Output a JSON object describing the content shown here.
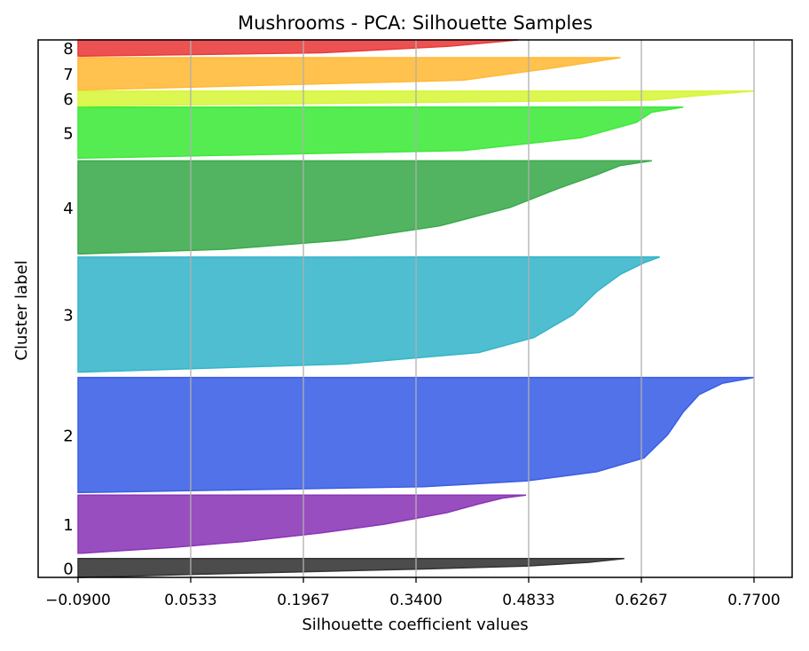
{
  "chart_data": {
    "type": "area",
    "title": "Mushrooms - PCA: Silhouette Samples",
    "xlabel": "Silhouette coefficient values",
    "ylabel": "Cluster label",
    "xlim": [
      -0.09,
      0.77
    ],
    "ylim": [
      0,
      1
    ],
    "x_ticks": [
      "−0.0900",
      "0.0533",
      "0.1967",
      "0.3400",
      "0.4833",
      "0.6267",
      "0.7700"
    ],
    "x_tick_values": [
      -0.09,
      0.0533,
      0.1967,
      0.34,
      0.4833,
      0.6267,
      0.77
    ],
    "grid": "vertical",
    "series": [
      {
        "label": "0",
        "color": "#333333",
        "band": [
          0.0,
          0.035
        ],
        "profile": [
          [
            0.0,
            0.605
          ],
          [
            0.2,
            0.56
          ],
          [
            0.4,
            0.48
          ],
          [
            0.55,
            0.35
          ],
          [
            0.7,
            0.2
          ],
          [
            0.85,
            0.05
          ],
          [
            1.0,
            -0.085
          ]
        ]
      },
      {
        "label": "1",
        "color": "#8b35b6",
        "band": [
          0.045,
          0.153
        ],
        "profile": [
          [
            0.0,
            0.48
          ],
          [
            0.05,
            0.45
          ],
          [
            0.15,
            0.42
          ],
          [
            0.3,
            0.38
          ],
          [
            0.5,
            0.3
          ],
          [
            0.65,
            0.22
          ],
          [
            0.8,
            0.12
          ],
          [
            0.9,
            0.03
          ],
          [
            1.0,
            -0.085
          ]
        ]
      },
      {
        "label": "2",
        "color": "#3a5ee6",
        "band": [
          0.158,
          0.372
        ],
        "profile": [
          [
            0.0,
            0.77
          ],
          [
            0.05,
            0.73
          ],
          [
            0.15,
            0.7
          ],
          [
            0.3,
            0.68
          ],
          [
            0.5,
            0.66
          ],
          [
            0.7,
            0.63
          ],
          [
            0.82,
            0.57
          ],
          [
            0.9,
            0.48
          ],
          [
            0.95,
            0.35
          ],
          [
            1.0,
            -0.085
          ]
        ]
      },
      {
        "label": "3",
        "color": "#35b5c9",
        "band": [
          0.382,
          0.596
        ],
        "profile": [
          [
            0.0,
            0.65
          ],
          [
            0.05,
            0.63
          ],
          [
            0.15,
            0.6
          ],
          [
            0.3,
            0.57
          ],
          [
            0.5,
            0.54
          ],
          [
            0.7,
            0.49
          ],
          [
            0.83,
            0.42
          ],
          [
            0.93,
            0.25
          ],
          [
            1.0,
            -0.085
          ]
        ]
      },
      {
        "label": "4",
        "color": "#3aaa4a",
        "band": [
          0.602,
          0.775
        ],
        "profile": [
          [
            0.0,
            0.64
          ],
          [
            0.05,
            0.6
          ],
          [
            0.15,
            0.57
          ],
          [
            0.3,
            0.52
          ],
          [
            0.5,
            0.46
          ],
          [
            0.7,
            0.37
          ],
          [
            0.85,
            0.25
          ],
          [
            0.95,
            0.1
          ],
          [
            1.0,
            -0.085
          ]
        ]
      },
      {
        "label": "5",
        "color": "#3de93a",
        "band": [
          0.78,
          0.875
        ],
        "profile": [
          [
            0.0,
            0.68
          ],
          [
            0.1,
            0.64
          ],
          [
            0.3,
            0.62
          ],
          [
            0.6,
            0.55
          ],
          [
            0.85,
            0.4
          ],
          [
            1.0,
            -0.085
          ]
        ]
      },
      {
        "label": "6",
        "color": "#d7f53a",
        "band": [
          0.877,
          0.905
        ],
        "profile": [
          [
            0.0,
            0.77
          ],
          [
            0.3,
            0.7
          ],
          [
            0.6,
            0.64
          ],
          [
            1.0,
            -0.085
          ]
        ]
      },
      {
        "label": "7",
        "color": "#ffb935",
        "band": [
          0.907,
          0.967
        ],
        "profile": [
          [
            0.0,
            0.6
          ],
          [
            0.3,
            0.52
          ],
          [
            0.7,
            0.4
          ],
          [
            1.0,
            -0.085
          ]
        ]
      },
      {
        "label": "8",
        "color": "#ea3a3a",
        "band": [
          0.97,
          1.0
        ],
        "profile": [
          [
            0.0,
            0.47
          ],
          [
            0.4,
            0.38
          ],
          [
            0.8,
            0.22
          ],
          [
            1.0,
            -0.085
          ]
        ]
      }
    ]
  }
}
